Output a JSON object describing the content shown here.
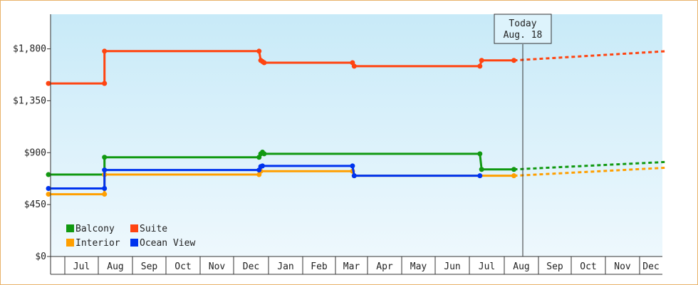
{
  "chart_data": {
    "type": "line",
    "title": "",
    "xlabel": "",
    "ylabel": "",
    "y_ticks": [
      "$0",
      "$450",
      "$900",
      "$1,350",
      "$1,800"
    ],
    "ylim": [
      0,
      2100
    ],
    "x_labels": [
      "Jul",
      "Aug",
      "Sep",
      "Oct",
      "Nov",
      "Dec",
      "Jan",
      "Feb",
      "Mar",
      "Apr",
      "May",
      "Jun",
      "Jul",
      "Aug",
      "Sep",
      "Oct",
      "Nov",
      "Dec"
    ],
    "today_label": [
      "Today",
      "Aug. 18"
    ],
    "legend_placement": "bottom-left",
    "grid": false,
    "background_colors": [
      "#c8eaf8",
      "#eef8fd"
    ],
    "series": [
      {
        "name": "Balcony",
        "color": "#119911",
        "points": [
          [
            0,
            710
          ],
          [
            1.65,
            710
          ],
          [
            1.65,
            860
          ],
          [
            6.2,
            860
          ],
          [
            6.25,
            890
          ],
          [
            6.3,
            905
          ],
          [
            6.35,
            890
          ],
          [
            8.95,
            890
          ],
          [
            12.7,
            890
          ],
          [
            12.75,
            755
          ],
          [
            13.7,
            755
          ]
        ],
        "projection": [
          [
            13.7,
            755
          ],
          [
            18.2,
            820
          ]
        ]
      },
      {
        "name": "Suite",
        "color": "#ff4411",
        "points": [
          [
            0,
            1500
          ],
          [
            1.65,
            1500
          ],
          [
            1.65,
            1780
          ],
          [
            6.2,
            1780
          ],
          [
            6.25,
            1700
          ],
          [
            6.3,
            1690
          ],
          [
            6.35,
            1680
          ],
          [
            8.95,
            1680
          ],
          [
            9.0,
            1650
          ],
          [
            12.7,
            1650
          ],
          [
            12.75,
            1700
          ],
          [
            13.7,
            1700
          ]
        ],
        "projection": [
          [
            13.7,
            1700
          ],
          [
            18.2,
            1780
          ]
        ]
      },
      {
        "name": "Interior",
        "color": "#ff9f00",
        "points": [
          [
            0,
            540
          ],
          [
            1.65,
            540
          ],
          [
            1.65,
            710
          ],
          [
            6.2,
            710
          ],
          [
            6.25,
            740
          ],
          [
            8.95,
            740
          ],
          [
            9.0,
            700
          ],
          [
            12.7,
            700
          ],
          [
            13.7,
            700
          ]
        ],
        "projection": [
          [
            13.7,
            700
          ],
          [
            18.2,
            770
          ]
        ]
      },
      {
        "name": "Ocean View",
        "color": "#0033ee",
        "points": [
          [
            0,
            590
          ],
          [
            1.65,
            590
          ],
          [
            1.65,
            750
          ],
          [
            6.2,
            750
          ],
          [
            6.25,
            780
          ],
          [
            6.3,
            785
          ],
          [
            8.95,
            785
          ],
          [
            9.0,
            700
          ],
          [
            12.7,
            700
          ]
        ],
        "projection": []
      }
    ]
  }
}
